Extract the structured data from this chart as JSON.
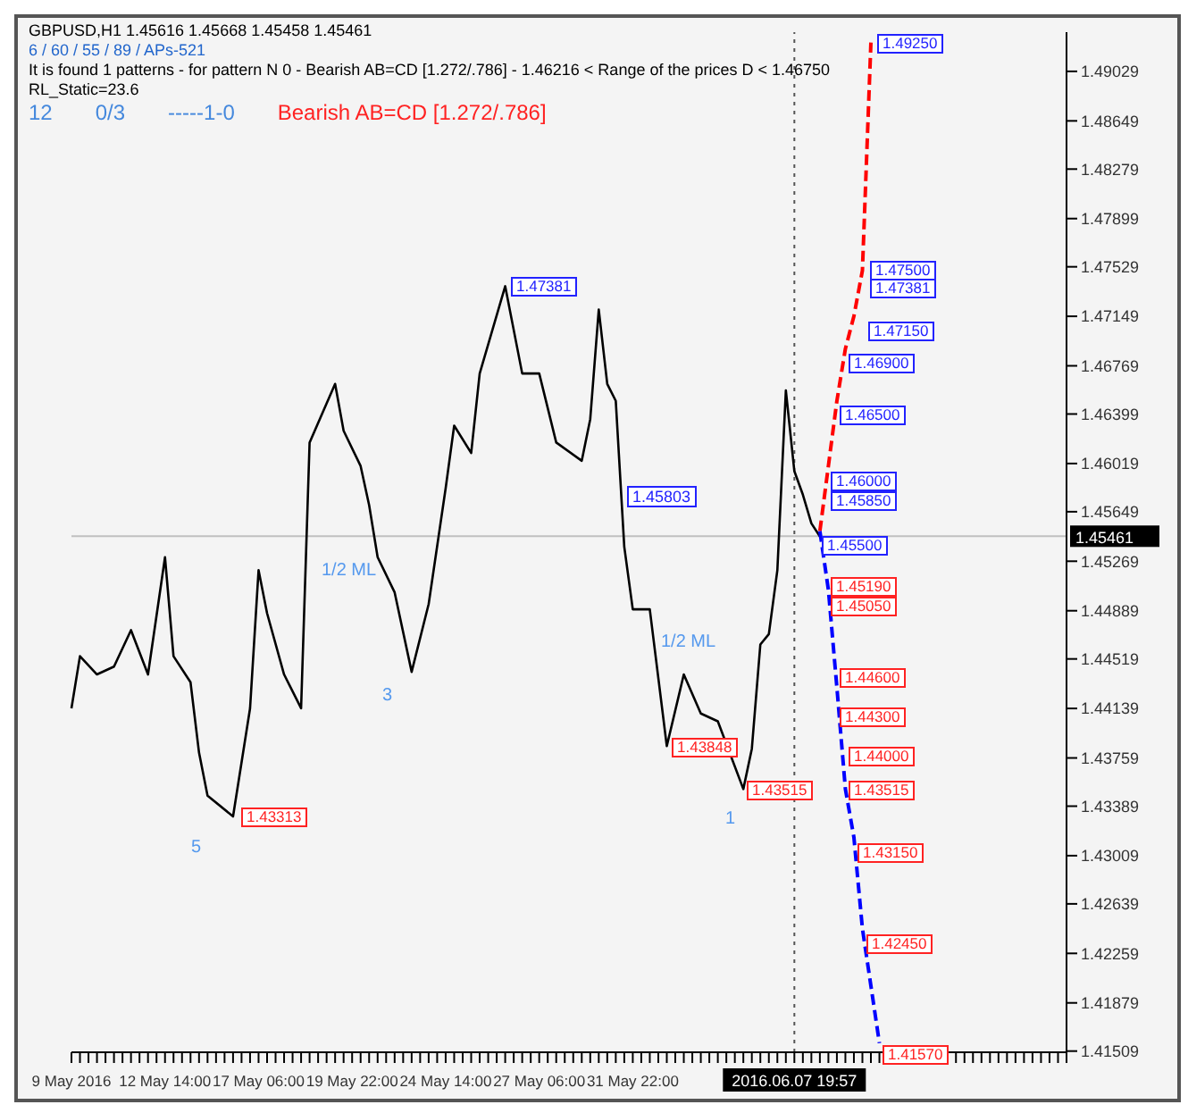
{
  "chart_data": {
    "type": "line",
    "title": "GBPUSD,H1 1.45616 1.45668 1.45458 1.45461",
    "subtitle": "6 / 60 / 55 / 89 / APs-521",
    "annotations": [
      "It is found 1 patterns  -  for pattern N 0 - Bearish AB=CD [1.272/.786] - 1.46216 < Range of the prices D < 1.46750",
      "RL_Static=23.6",
      "12",
      "0/3",
      "-----1-0",
      "Bearish AB=CD [1.272/.786]",
      "1.45803",
      "5",
      "3",
      "1",
      "1/2 ML",
      "1/2 ML",
      "1.43313",
      "1.47381",
      "1.43848",
      "1.43515",
      "1.49250",
      "1.47500",
      "1.47381",
      "1.47150",
      "1.46900",
      "1.46500",
      "1.46000",
      "1.45850",
      "1.45500",
      "1.45190",
      "1.45050",
      "1.44600",
      "1.44300",
      "1.44000",
      "1.43515",
      "1.43150",
      "1.42450",
      "1.41570"
    ],
    "categories": [
      "9 May 2016",
      null,
      null,
      null,
      null,
      null,
      null,
      null,
      null,
      null,
      null,
      "12 May 14:00",
      null,
      null,
      null,
      null,
      null,
      null,
      null,
      null,
      null,
      null,
      "17 May 06:00",
      null,
      null,
      null,
      null,
      null,
      null,
      null,
      null,
      null,
      null,
      "19 May 22:00",
      null,
      null,
      null,
      null,
      null,
      null,
      null,
      null,
      null,
      null,
      "24 May 14:00",
      null,
      null,
      null,
      null,
      null,
      null,
      null,
      null,
      null,
      null,
      "27 May 06:00",
      null,
      null,
      null,
      null,
      null,
      null,
      null,
      null,
      null,
      null,
      "31 May 22:00",
      null,
      null,
      null,
      null,
      null,
      null,
      null,
      null,
      null,
      null,
      null,
      null,
      null,
      null,
      null,
      null,
      null,
      null,
      "2016.06.07 19:57",
      null,
      null,
      null,
      null,
      null,
      null,
      null,
      null,
      null,
      null,
      null,
      null,
      null,
      null,
      null,
      null,
      null,
      null,
      null,
      null,
      null,
      null,
      null,
      null,
      null,
      null,
      null,
      null,
      null,
      null,
      null,
      null
    ],
    "ylim": [
      1.415,
      1.4933
    ],
    "yticks": [
      1.49029,
      1.48649,
      1.48279,
      1.47899,
      1.47529,
      1.47149,
      1.46769,
      1.46399,
      1.46019,
      1.45649,
      1.45269,
      1.44889,
      1.44519,
      1.44139,
      1.43759,
      1.43389,
      1.43009,
      1.42639,
      1.42259,
      1.41879,
      1.41509
    ],
    "ref_lines": [
      {
        "axis": "y",
        "value": 1.45461,
        "label": "1.45461",
        "color": "#c0c0c0",
        "line_style": "solid"
      },
      {
        "axis": "x",
        "value": "2016.06.07 19:57",
        "color": "#555555",
        "line_style": "dotted"
      }
    ],
    "series": [
      {
        "color": "#000000",
        "line_style": "solid",
        "values": [
          1.4414,
          1.4454,
          null,
          1.444,
          null,
          1.4446,
          null,
          1.4474,
          null,
          1.444,
          null,
          1.453,
          1.4454,
          null,
          1.4434,
          1.438,
          1.4347,
          null,
          null,
          1.4331,
          null,
          1.4414,
          1.452,
          1.4487,
          null,
          1.444,
          null,
          1.4414,
          1.4618,
          null,
          null,
          1.4663,
          1.4627,
          null,
          1.46,
          1.457,
          1.453,
          null,
          1.4503,
          null,
          1.4442,
          null,
          1.4494,
          null,
          1.4583,
          1.4631,
          null,
          1.461,
          1.4671,
          null,
          null,
          1.4738,
          null,
          1.4671,
          null,
          1.4671,
          null,
          1.4618,
          null,
          null,
          1.4604,
          1.4636,
          1.472,
          1.4663,
          1.465,
          1.4538,
          1.449,
          null,
          1.449,
          null,
          1.4385,
          null,
          1.444,
          null,
          1.441,
          null,
          1.4404,
          null,
          null,
          1.4352,
          1.4383,
          1.4463,
          1.4471,
          1.452,
          1.4658,
          1.4596,
          1.4578,
          1.4556,
          1.4546,
          null,
          null,
          null,
          null,
          null,
          null,
          null,
          null,
          null,
          null,
          null,
          null,
          null,
          null,
          null,
          null,
          null,
          null,
          null,
          null,
          null,
          null,
          null,
          null,
          null,
          null,
          null,
          null,
          null
        ]
      },
      {
        "color": "#ff0000",
        "line_style": "dashed",
        "values": [
          null,
          null,
          null,
          null,
          null,
          null,
          null,
          null,
          null,
          null,
          null,
          null,
          null,
          null,
          null,
          null,
          null,
          null,
          null,
          null,
          null,
          null,
          null,
          null,
          null,
          null,
          null,
          null,
          null,
          null,
          null,
          null,
          null,
          null,
          null,
          null,
          null,
          null,
          null,
          null,
          null,
          null,
          null,
          null,
          null,
          null,
          null,
          null,
          null,
          null,
          null,
          null,
          null,
          null,
          null,
          null,
          null,
          null,
          null,
          null,
          null,
          null,
          null,
          null,
          null,
          null,
          null,
          null,
          null,
          null,
          null,
          null,
          null,
          null,
          null,
          null,
          null,
          null,
          null,
          null,
          null,
          null,
          null,
          null,
          null,
          null,
          null,
          null,
          1.455,
          1.46,
          1.465,
          1.469,
          1.4715,
          1.475,
          1.4925,
          null,
          null,
          null,
          null,
          null,
          null,
          null,
          null,
          null,
          null,
          null,
          null,
          null,
          null,
          null,
          null,
          null,
          null,
          null,
          null,
          null,
          null,
          null
        ]
      },
      {
        "color": "#0000ff",
        "line_style": "dashed",
        "values": [
          null,
          null,
          null,
          null,
          null,
          null,
          null,
          null,
          null,
          null,
          null,
          null,
          null,
          null,
          null,
          null,
          null,
          null,
          null,
          null,
          null,
          null,
          null,
          null,
          null,
          null,
          null,
          null,
          null,
          null,
          null,
          null,
          null,
          null,
          null,
          null,
          null,
          null,
          null,
          null,
          null,
          null,
          null,
          null,
          null,
          null,
          null,
          null,
          null,
          null,
          null,
          null,
          null,
          null,
          null,
          null,
          null,
          null,
          null,
          null,
          null,
          null,
          null,
          null,
          null,
          null,
          null,
          null,
          null,
          null,
          null,
          null,
          null,
          null,
          null,
          null,
          null,
          null,
          null,
          null,
          null,
          null,
          null,
          null,
          null,
          null,
          null,
          null,
          1.455,
          1.4505,
          1.443,
          1.4352,
          1.4315,
          1.4245,
          null,
          1.4157,
          null,
          null,
          null,
          null,
          null,
          null,
          null,
          null,
          null,
          null,
          null,
          null,
          null,
          null,
          null,
          null,
          null,
          null,
          null,
          null,
          null,
          null
        ]
      }
    ],
    "marker": "none"
  }
}
